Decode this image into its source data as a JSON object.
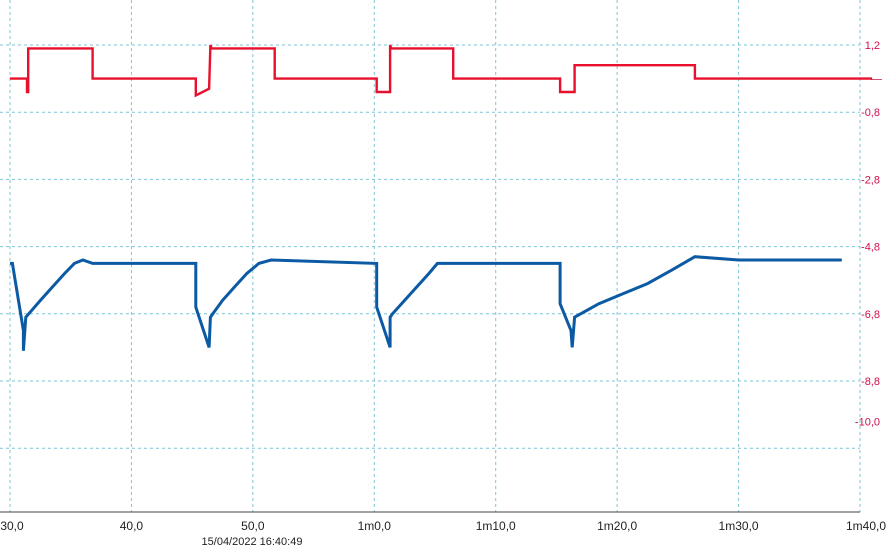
{
  "chart_data": {
    "type": "line",
    "title": "",
    "xlabel": "",
    "ylabel": "",
    "grid": true,
    "timestamp": "15/04/2022 16:40:49",
    "x_unit": "seconds",
    "xlim": [
      30,
      101
    ],
    "ylim": [
      -12.0,
      1.8
    ],
    "x_tick_values": [
      30,
      40,
      50,
      60,
      70,
      80,
      90,
      100
    ],
    "x_tick_labels": [
      "30,0",
      "40,0",
      "50,0",
      "1m0,0",
      "1m10,0",
      "1m20,0",
      "1m30,0",
      "1m40,0"
    ],
    "y_tick_values": [
      1.2,
      -0.8,
      -2.8,
      -4.8,
      -6.8,
      -8.8,
      -10.0
    ],
    "y_tick_labels": [
      "1,2",
      "-0,8",
      "-2,8",
      "-4,8",
      "-6,8",
      "-8,8",
      "-10,0"
    ],
    "y_marker_value": 0.2,
    "y_marker_label": "—",
    "colors": {
      "series_red": "#e8102c",
      "series_blue": "#0b5aa3",
      "axis_text": "#d0104c",
      "grid": "#7fc4d6"
    },
    "series": [
      {
        "color": "#e8102c",
        "x": [
          30,
          31.4,
          31.4,
          31.5,
          31.5,
          36.8,
          36.8,
          45.3,
          45.3,
          46.4,
          46.5,
          46.6,
          51.8,
          51.8,
          60.2,
          60.2,
          61.3,
          61.3,
          61.4,
          66.5,
          66.5,
          75.3,
          75.3,
          76.5,
          76.5,
          76.6,
          86.4,
          86.4,
          101
        ],
        "y": [
          0.2,
          0.2,
          -0.2,
          -0.2,
          1.1,
          1.1,
          0.2,
          0.2,
          -0.3,
          -0.1,
          1.2,
          1.1,
          1.1,
          0.2,
          0.2,
          -0.2,
          -0.2,
          1.2,
          1.1,
          1.1,
          0.2,
          0.2,
          -0.2,
          -0.2,
          0.6,
          0.6,
          0.6,
          0.2,
          0.2
        ]
      },
      {
        "color": "#0b5aa3",
        "x": [
          30,
          30.2,
          31.1,
          31.1,
          31.3,
          32.5,
          33.5,
          34.5,
          35.3,
          36.0,
          36.8,
          45.3,
          45.3,
          46.4,
          46.5,
          46.7,
          47.5,
          48.5,
          49.5,
          50.5,
          51.5,
          60.2,
          60.2,
          61.3,
          61.3,
          61.5,
          62.5,
          63.5,
          64.5,
          65.2,
          66.3,
          75.3,
          75.3,
          76.2,
          76.3,
          76.5,
          78.5,
          80.5,
          82.5,
          84.5,
          86.4,
          90.0,
          98.5
        ],
        "y": [
          -5.3,
          -5.3,
          -7.3,
          -7.9,
          -6.9,
          -6.4,
          -6.0,
          -5.6,
          -5.3,
          -5.2,
          -5.3,
          -5.3,
          -6.6,
          -7.8,
          -6.9,
          -6.8,
          -6.4,
          -6.0,
          -5.6,
          -5.3,
          -5.2,
          -5.3,
          -6.6,
          -7.8,
          -6.9,
          -6.8,
          -6.4,
          -6.0,
          -5.6,
          -5.3,
          -5.3,
          -5.3,
          -6.5,
          -7.3,
          -7.8,
          -6.9,
          -6.5,
          -6.2,
          -5.9,
          -5.5,
          -5.1,
          -5.2,
          -5.2
        ]
      }
    ]
  }
}
